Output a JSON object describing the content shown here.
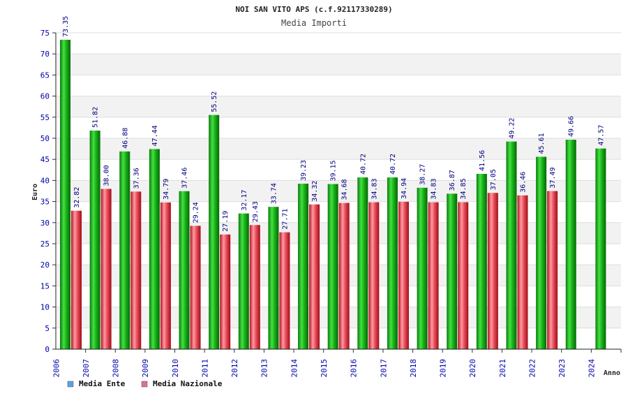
{
  "chart_data": {
    "type": "bar",
    "title": "NOI SAN VITO APS (c.f.92117330289)",
    "subtitle": "Media Importi",
    "xlabel": "Anno",
    "ylabel": "Euro",
    "ylim": [
      0,
      75
    ],
    "ytick_step": 5,
    "grid": true,
    "legend_position": "bottom-left",
    "categories": [
      "2006",
      "2007",
      "2008",
      "2009",
      "2010",
      "2011",
      "2012",
      "2013",
      "2014",
      "2015",
      "2016",
      "2017",
      "2018",
      "2019",
      "2020",
      "2021",
      "2022",
      "2023",
      "2024"
    ],
    "series": [
      {
        "name": "Media Ente",
        "color": "#22bb22",
        "legend_color": "#5aa0e8",
        "values": [
          73.35,
          51.82,
          46.88,
          47.44,
          37.46,
          55.52,
          32.17,
          33.74,
          39.23,
          39.15,
          40.72,
          40.72,
          38.27,
          36.87,
          41.56,
          49.22,
          45.61,
          49.66,
          47.57
        ],
        "labels": [
          "73.35",
          "51.82",
          "46.88",
          "47.44",
          "37.46",
          "55.52",
          "32.17",
          "33.74",
          "39.23",
          "39.15",
          "40.72",
          "40.72",
          "38.27",
          "36.87",
          "41.56",
          "49.22",
          "45.61",
          "49.66",
          "47.57"
        ]
      },
      {
        "name": "Media Nazionale",
        "color": "#e85560",
        "legend_color": "#e07090",
        "values": [
          32.82,
          38.0,
          37.36,
          34.79,
          29.24,
          27.19,
          29.43,
          27.71,
          34.32,
          34.68,
          34.83,
          34.94,
          34.83,
          34.85,
          37.05,
          36.46,
          37.49,
          null,
          null
        ],
        "labels": [
          "32.82",
          "38.00",
          "37.36",
          "34.79",
          "29.24",
          "27.19",
          "29.43",
          "27.71",
          "34.32",
          "34.68",
          "34.83",
          "34.94",
          "34.83",
          "34.85",
          "37.05",
          "36.46",
          "37.49",
          null,
          null
        ]
      }
    ]
  }
}
